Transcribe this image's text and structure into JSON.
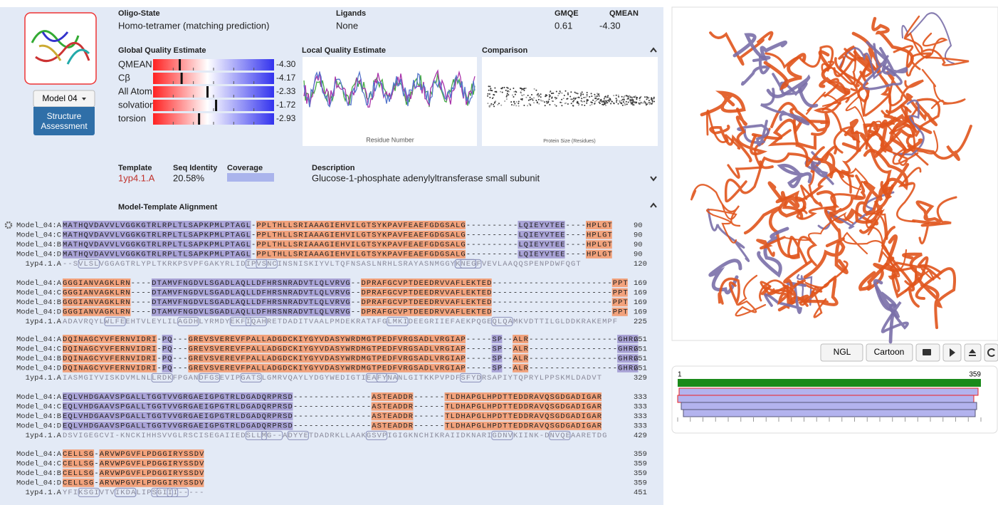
{
  "header": {
    "oligo_state_label": "Oligo-State",
    "oligo_state": "Homo-tetramer (matching prediction)",
    "ligands_label": "Ligands",
    "ligands": "None",
    "gmqe_label": "GMQE",
    "gmqe": "0.61",
    "qmean_label": "QMEAN",
    "qmean": "-4.30"
  },
  "model_button": "Model 04",
  "structure_assessment": "Structure Assessment",
  "global_quality": {
    "title": "Global Quality Estimate",
    "items": [
      {
        "name": "QMEAN",
        "value": -4.3,
        "label": "-4.30"
      },
      {
        "name": "Cβ",
        "value": -4.17,
        "label": "-4.17"
      },
      {
        "name": "All Atom",
        "value": -2.33,
        "label": "-2.33"
      },
      {
        "name": "solvation",
        "value": -1.72,
        "label": "-1.72"
      },
      {
        "name": "torsion",
        "value": -2.93,
        "label": "-2.93"
      }
    ]
  },
  "local_quality": {
    "title": "Local Quality Estimate",
    "xlabel": "Residue Number"
  },
  "comparison": {
    "title": "Comparison",
    "xlabel": "Protein Size (Residues)"
  },
  "template": {
    "template_label": "Template",
    "identity_label": "Seq Identity",
    "coverage_label": "Coverage",
    "description_label": "Description",
    "id": "1yp4.1.A",
    "identity": "20.58%",
    "description": "Glucose-1-phosphate adenylyltransferase small subunit"
  },
  "alignment": {
    "title": "Model-Template Alignment",
    "blocks": [
      {
        "rows": [
          {
            "name": "Model_04:A",
            "seq": "MATHQVDAVVLVGGKGTRLRPLTLSAPKPMLPTAGL-PPLTHLLSRIAAAGIEHVILGTSYKPAVFEAEFGDGSALG----------LQIEYVTEE----HPLGT",
            "end": 90
          },
          {
            "name": "Model_04:C",
            "seq": "MATHQVDAVVLVGGKGTRLRPLTLSAPKPMLPTAGL-PPLTHLLSRIAAAGIEHVILGTSYKPAVFEAEFGDGSALG----------LQIEYVTEE----HPLGT",
            "end": 90
          },
          {
            "name": "Model_04:B",
            "seq": "MATHQVDAVVLVGGKGTRLRPLTLSAPKPMLPTAGL-PPLTHLLSRIAAAGIEHVILGTSYKPAVFEAEFGDGSALG----------LQIEYVTEE----HPLGT",
            "end": 90
          },
          {
            "name": "Model_04:D",
            "seq": "MATHQVDAVVLVGGKGTRLRPLTLSAPKPMLPTAGL-PPLTHLLSRIAAAGIEHVILGTSYKPAVFEAEFGDGSALG----------LQIEYVTEE----HPLGT",
            "end": 90
          },
          {
            "name": "1yp4.1.A",
            "seq": "--SVLSLVGGAGTRLYPLTKRKPSVPFGAKYRLIDIPVSNCINSNISKIYVLTQFNSASLNRHLSRAYASNMGGYKNEGFVEVLAAQQSPENPDWFQGT",
            "end": 120
          }
        ]
      },
      {
        "rows": [
          {
            "name": "Model_04:A",
            "seq": "GGGIANVAGKLRN----DTAMVFNGDVLSGADLAQLLDFHRSNRADVTLQLVRVG--DPRAFGCVPTDEEDRVVAFLEKTED-----------------------PPT",
            "end": 169
          },
          {
            "name": "Model_04:C",
            "seq": "GGGIANVAGKLRN----DTAMVFNGDVLSGADLAQLLDFHRSNRADVTLQLVRVG--DPRAFGCVPTDEEDRVVAFLEKTED-----------------------PPT",
            "end": 169
          },
          {
            "name": "Model_04:B",
            "seq": "GGGIANVAGKLRN----DTAMVFNGDVLSGADLAQLLDFHRSNRADVTLQLVRVG--DPRAFGCVPTDEEDRVVAFLEKTED-----------------------PPT",
            "end": 169
          },
          {
            "name": "Model_04:D",
            "seq": "GGGIANVAGKLRN----DTAMVFNGDVLSGADLAQLLDFHRSNRADVTLQLVRVG--DPRAFGCVPTDEEDRVVAFLEKTED-----------------------PPT",
            "end": 169
          },
          {
            "name": "1yp4.1.A",
            "seq": "ADAVRQYLWLFEEHTVLEYLILAGDHLYRMDYEKFIQAHRETDADITVAALPMDEKRATAFGLMKIDEEGRIIEFAEKPQGEQLQAMKVDTTILGLDDKRAKEMPF",
            "end": 225
          }
        ]
      },
      {
        "rows": [
          {
            "name": "Model_04:A",
            "seq": "DQINAGCYVFERNVIDRI-PQ---GREVSVEREVFPALLADGDCKIYGYVDASYWRDMGTPEDFVRGSADLVRGIAP-----SP--ALR-----------------GHRG",
            "end": 251
          },
          {
            "name": "Model_04:C",
            "seq": "DQINAGCYVFERNVIDRI-PQ---GREVSVEREVFPALLADGDCKIYGYVDASYWRDMGTPEDFVRGSADLVRGIAP-----SP--ALR-----------------GHRG",
            "end": 251
          },
          {
            "name": "Model_04:B",
            "seq": "DQINAGCYVFERNVIDRI-PQ---GREVSVEREVFPALLADGDCKIYGYVDASYWRDMGTPEDFVRGSADLVRGIAP-----SP--ALR-----------------GHRG",
            "end": 251
          },
          {
            "name": "Model_04:D",
            "seq": "DQINAGCYVFERNVIDRI-PQ---GREVSVEREVFPALLADGDCKIYGYVDASYWRDMGTPEDFVRGSADLVRGIAP-----SP--ALR-----------------GHRG",
            "end": 251
          },
          {
            "name": "1yp4.1.A",
            "seq": "IASMGIYVISKDVMLNLLRDKFPGANDFGSEVIPGATSLGMRVQAYLYDGYWEDIGTIEAFYNANLGITKKPVPDFSFYDRSAPIYTQPRYLPPSKMLDADVT",
            "end": 329
          }
        ]
      },
      {
        "rows": [
          {
            "name": "Model_04:A",
            "seq": "EQLVHDGAAVSPGALLTGGTVVGRGAEIGPGTRLDGADQRPRSD---------------ASTEADDR------TLDHAPGLHPDTTEDDRAVQSGDGADIGAR",
            "end": 333
          },
          {
            "name": "Model_04:C",
            "seq": "EQLVHDGAAVSPGALLTGGTVVGRGAEIGPGTRLDGADQRPRSD---------------ASTEADDR------TLDHAPGLHPDTTEDDRAVQSGDGADIGAR",
            "end": 333
          },
          {
            "name": "Model_04:B",
            "seq": "EQLVHDGAAVSPGALLTGGTVVGRGAEIGPGTRLDGADQRPRSD---------------ASTEADDR------TLDHAPGLHPDTTEDDRAVQSGDGADIGAR",
            "end": 333
          },
          {
            "name": "Model_04:D",
            "seq": "EQLVHDGAAVSPGALLTGGTVVGRGAEIGPGTRLDGADQRPRSD---------------ASTEADDR------TLDHAPGLHPDTTEDDRAVQSGDGADIGAR",
            "end": 333
          },
          {
            "name": "1yp4.1.A",
            "seq": "DSVIGEGCVI-KNCKIHHSVVGLRSCISEGAIIEDSLLMG--ADYYETDADRKLLAAKGSVPIGIGKNCHIKRAIIDKNARIGDNVKIINK-DNVQEAARETDG",
            "end": 429
          }
        ]
      },
      {
        "rows": [
          {
            "name": "Model_04:A",
            "seq": "CELLSG-ARVWPGVFLPDGGIRYSSDV",
            "end": 359
          },
          {
            "name": "Model_04:C",
            "seq": "CELLSG-ARVWPGVFLPDGGIRYSSDV",
            "end": 359
          },
          {
            "name": "Model_04:B",
            "seq": "CELLSG-ARVWPGVFLPDGGIRYSSDV",
            "end": 359
          },
          {
            "name": "Model_04:D",
            "seq": "CELLSG-ARVWPGVFLPDGGIRYSSDV",
            "end": 359
          },
          {
            "name": "1yp4.1.A",
            "seq": "YFIKSGIVTVIKDALIPSGIII-----",
            "end": 451
          }
        ]
      }
    ]
  },
  "viewer": {
    "buttons": [
      "NGL",
      "Cartoon"
    ],
    "coverage": {
      "start": 1,
      "end": 359
    }
  }
}
